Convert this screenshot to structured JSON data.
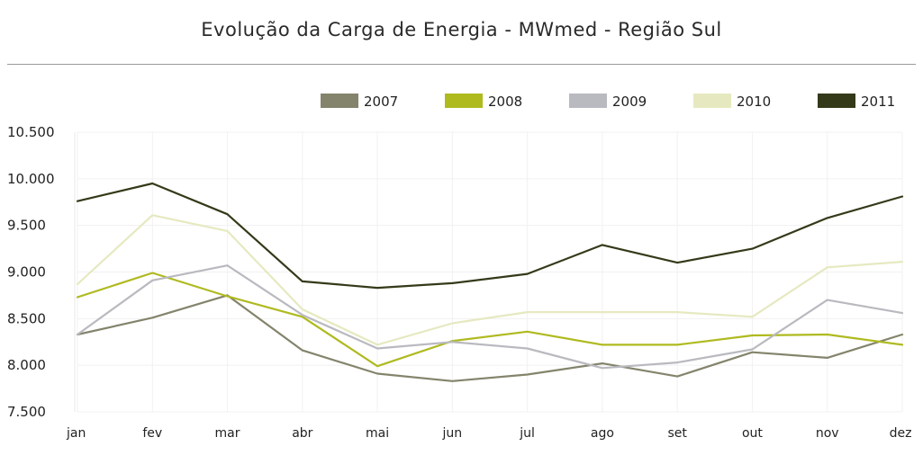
{
  "chart_data": {
    "type": "line",
    "title": "Evolução da Carga de Energia - MWmed - Região Sul",
    "xlabel": "",
    "ylabel": "",
    "categories": [
      "jan",
      "fev",
      "mar",
      "abr",
      "mai",
      "jun",
      "jul",
      "ago",
      "set",
      "out",
      "nov",
      "dez"
    ],
    "ylim": [
      7500,
      10500
    ],
    "yticks": [
      7500,
      8000,
      8500,
      9000,
      9500,
      10000,
      10500
    ],
    "ytick_labels": [
      "7.500",
      "8.000",
      "8.500",
      "9.000",
      "9.500",
      "10.000",
      "10.500"
    ],
    "grid": true,
    "legend_position": "top-right",
    "series": [
      {
        "name": "2007",
        "color": "#84846c",
        "values": [
          8330,
          8510,
          8750,
          8160,
          7910,
          7830,
          7900,
          8020,
          7880,
          8140,
          8080,
          8330
        ]
      },
      {
        "name": "2008",
        "color": "#afba1f",
        "values": [
          8730,
          8990,
          8740,
          8520,
          7990,
          8260,
          8360,
          8220,
          8220,
          8320,
          8330,
          8220
        ]
      },
      {
        "name": "2009",
        "color": "#b9b9c0",
        "values": [
          8330,
          8910,
          9070,
          8540,
          8180,
          8250,
          8180,
          7970,
          8030,
          8170,
          8700,
          8560
        ]
      },
      {
        "name": "2010",
        "color": "#e6e9c0",
        "values": [
          8870,
          9610,
          9440,
          8600,
          8220,
          8450,
          8570,
          8570,
          8570,
          8520,
          9050,
          9110
        ]
      },
      {
        "name": "2011",
        "color": "#343a19",
        "values": [
          9760,
          9950,
          9620,
          8900,
          8830,
          8880,
          8980,
          9290,
          9100,
          9250,
          9580,
          9810
        ]
      }
    ]
  }
}
